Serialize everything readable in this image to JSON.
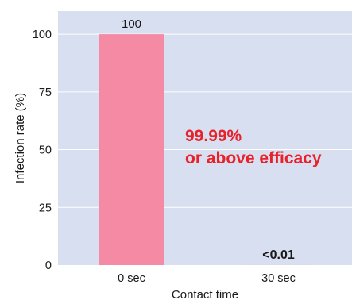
{
  "chart_data": {
    "type": "bar",
    "categories": [
      "0 sec",
      "30 sec"
    ],
    "values": [
      100,
      0.01
    ],
    "data_labels": [
      "100",
      "<0.01"
    ],
    "xlabel": "Contact time",
    "ylabel": "Infection rate (%)",
    "ylim": [
      0,
      110
    ],
    "yticks": [
      0,
      25,
      50,
      75,
      100
    ],
    "grid": true,
    "annotation": {
      "lines": [
        "99.99%",
        "or above efficacy"
      ],
      "color": "#e8212a"
    },
    "colors": {
      "bar": "#f48aa3",
      "plot_background": "#d8dff0",
      "grid": "#ffffff"
    }
  }
}
